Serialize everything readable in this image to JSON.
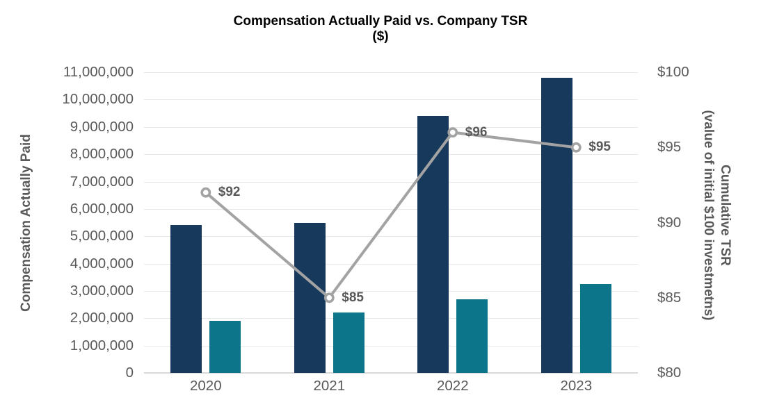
{
  "title": {
    "line1": "Compensation Actually Paid vs. Company TSR",
    "line2": "($)"
  },
  "left_axis": {
    "title": "Compensation Actually Paid",
    "ticks": [
      "11,000,000",
      "10,000,000",
      "9,000,000",
      "8,000,000",
      "7,000,000",
      "6,000,000",
      "5,000,000",
      "4,000,000",
      "3,000,000",
      "2,000,000",
      "1,000,000",
      "0"
    ]
  },
  "right_axis": {
    "title_line1": "Cumulative TSR",
    "title_line2": "(value of initial $100 investmetns)",
    "ticks": [
      "$100",
      "$95",
      "$90",
      "$85",
      "$80"
    ]
  },
  "x_axis": {
    "categories": [
      "2020",
      "2021",
      "2022",
      "2023"
    ]
  },
  "colors": {
    "bar_primary": "#17395C",
    "bar_secondary": "#0D7589",
    "line": "#A3A3A3",
    "marker_fill": "#FFFFFF",
    "gridline": "#E8E8E8",
    "axis_line": "#D9D9D9",
    "tick_text": "#595959",
    "title_text": "#000000"
  },
  "chart_data": {
    "type": "bar+line combo, dual axis",
    "title": "Compensation Actually Paid vs. Company TSR ($)",
    "categories": [
      "2020",
      "2021",
      "2022",
      "2023"
    ],
    "left_ylim": [
      0,
      11000000
    ],
    "left_grid_step": 1000000,
    "right_ylim": [
      80,
      100
    ],
    "grid": true,
    "legend": "none",
    "series": [
      {
        "key": "bar-primary",
        "type": "bar",
        "axis": "left",
        "color": "#17395C",
        "values": [
          5400000,
          5500000,
          9400000,
          10800000
        ]
      },
      {
        "key": "bar-secondary",
        "type": "bar",
        "axis": "left",
        "color": "#0D7589",
        "values": [
          1900000,
          2200000,
          2700000,
          3250000
        ]
      },
      {
        "key": "tsr-line",
        "name": "Cumulative TSR",
        "type": "line",
        "axis": "right",
        "color": "#A3A3A3",
        "values": [
          92,
          85,
          96,
          95
        ],
        "labels": [
          "$92",
          "$85",
          "$96",
          "$95"
        ]
      }
    ]
  }
}
